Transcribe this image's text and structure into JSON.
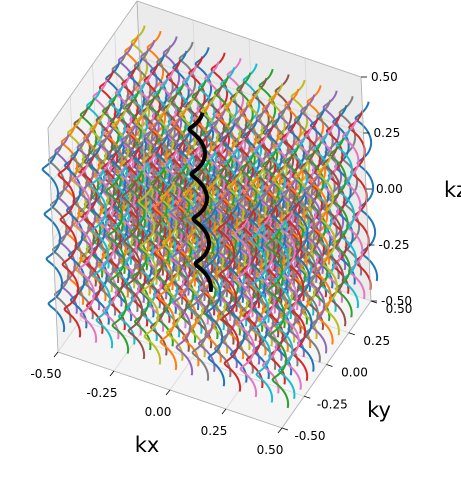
{
  "chart_data": {
    "type": "line",
    "projection": "3d",
    "description_of_series": "Grid of helical trajectories along kz, one per (kx, ky) grid point; one highlighted trajectory in black",
    "xlabel": "kx",
    "ylabel": "ky",
    "zlabel": "kz",
    "xlim": [
      -0.5,
      0.5
    ],
    "ylim": [
      -0.5,
      0.5
    ],
    "zlim": [
      -0.5,
      0.5
    ],
    "x_ticks": [
      "-0.50",
      "-0.25",
      "0.00",
      "0.25",
      "0.50"
    ],
    "y_ticks": [
      "-0.50",
      "-0.25",
      "0.00",
      "0.25",
      "0.50"
    ],
    "z_ticks": [
      "-0.50",
      "-0.25",
      "0.00",
      "0.25",
      "0.50"
    ],
    "grid": true,
    "grid_x_positions": [
      -0.5,
      -0.4286,
      -0.3571,
      -0.2857,
      -0.2143,
      -0.1429,
      -0.0714,
      0.0,
      0.0714,
      0.1429,
      0.2143,
      0.2857,
      0.3571,
      0.4286,
      0.5
    ],
    "grid_y_positions": [
      -0.5,
      -0.4286,
      -0.3571,
      -0.2857,
      -0.2143,
      -0.1429,
      -0.0714,
      0.0,
      0.0714,
      0.1429,
      0.2143,
      0.2857,
      0.3571,
      0.4286,
      0.5
    ],
    "helix_radius": 0.03,
    "helix_turns": 4,
    "kz_range": [
      -0.4,
      0.4
    ],
    "highlight": {
      "x": -0.0714,
      "y": 0.0714,
      "color": "#000000"
    },
    "colors": [
      "#1f77b4",
      "#ff7f0e",
      "#2ca02c",
      "#d62728",
      "#9467bd",
      "#8c564b",
      "#e377c2",
      "#7f7f7f",
      "#bcbd22",
      "#17becf"
    ]
  }
}
